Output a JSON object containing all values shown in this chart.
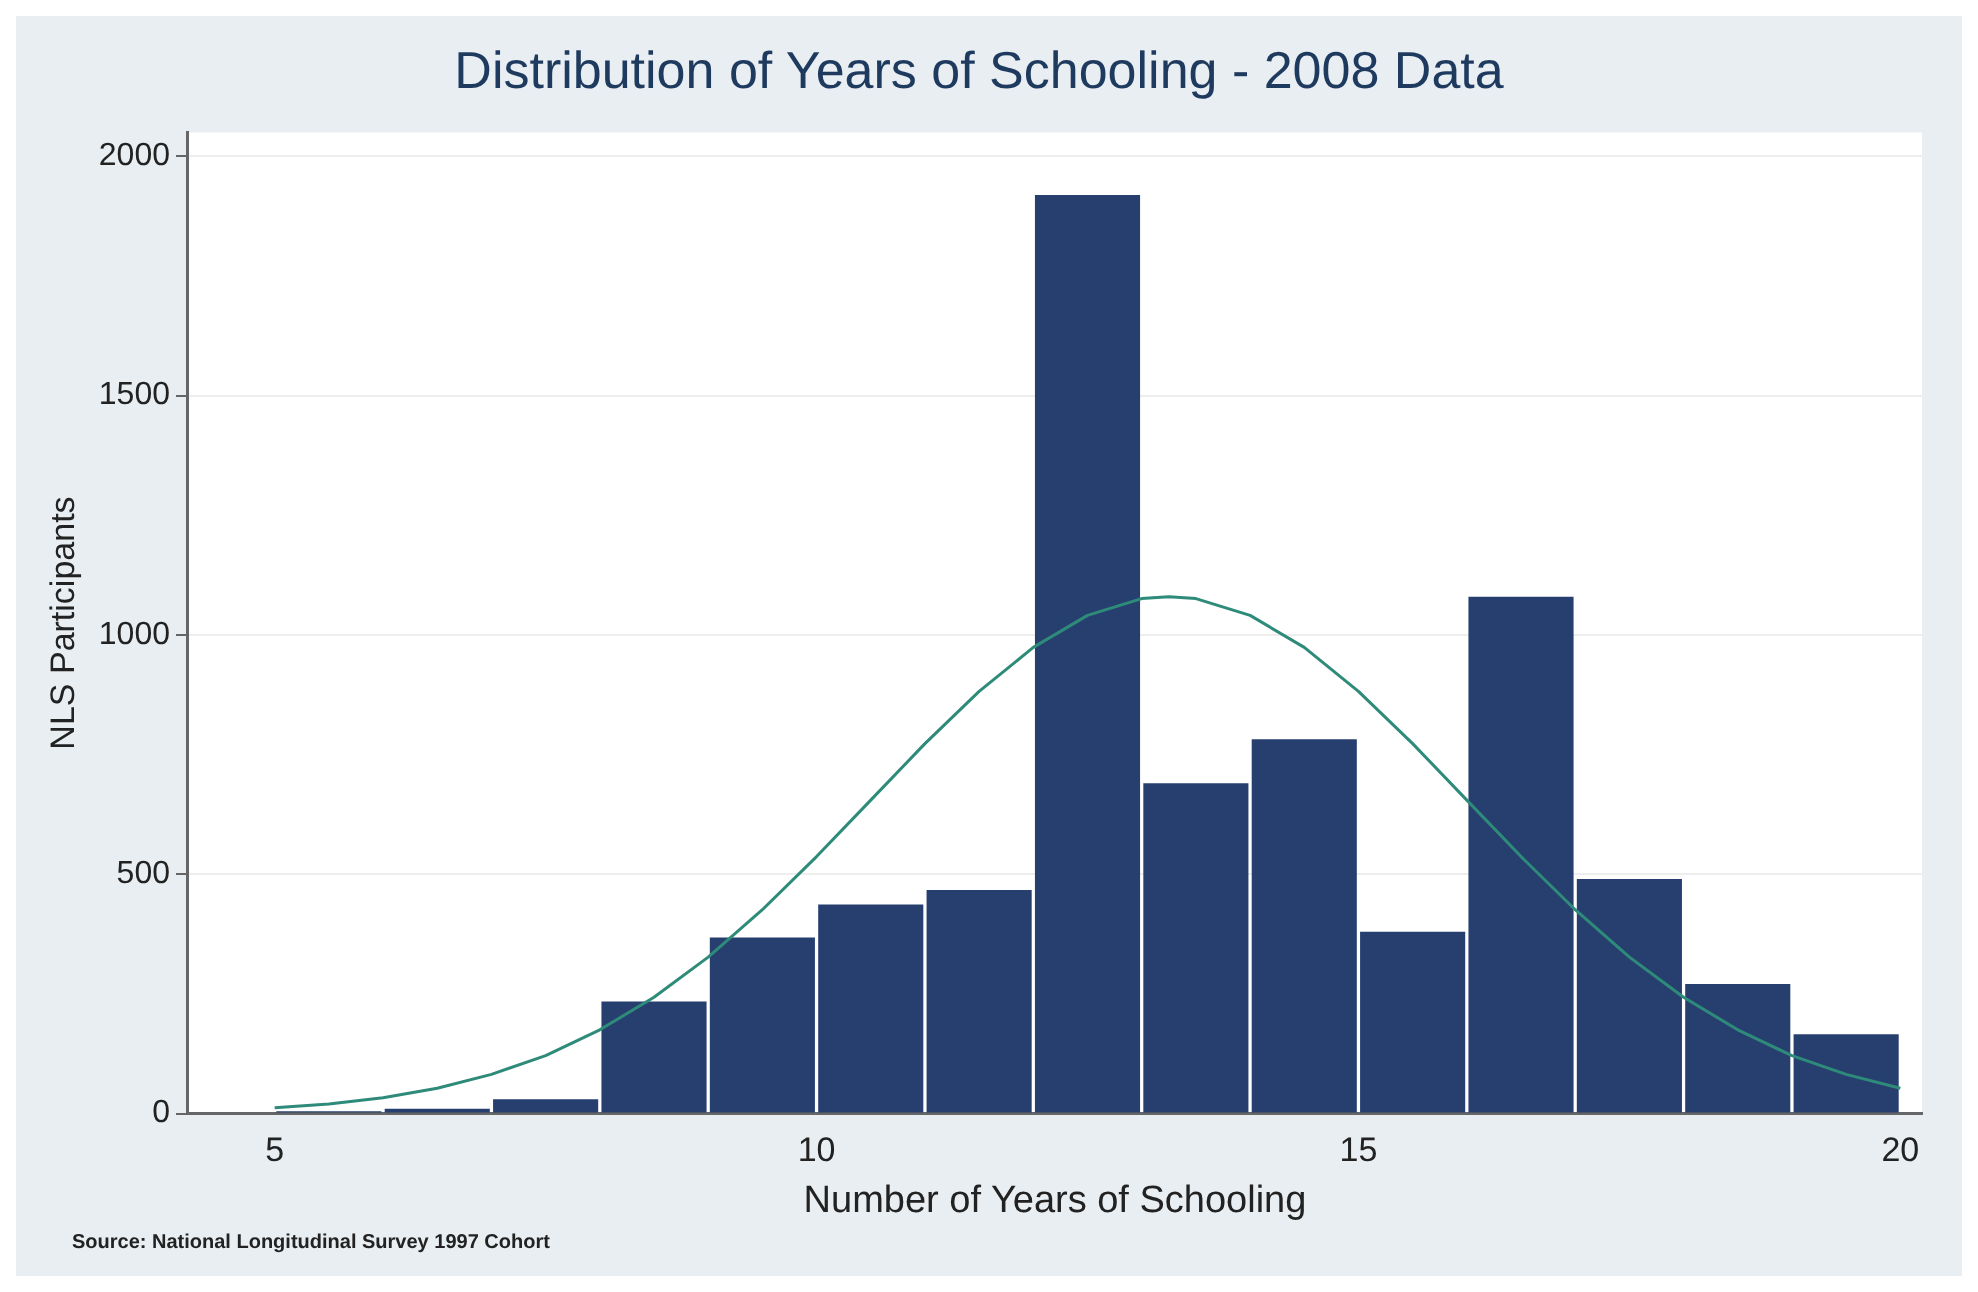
{
  "chart_data": {
    "type": "histogram",
    "title": "Distribution of Years of Schooling - 2008 Data",
    "xlabel": "Number of Years of Schooling",
    "ylabel": "NLS Participants",
    "annotations": [
      "Source: National Longitudinal Survey 1997 Cohort"
    ],
    "bins": [
      5,
      6,
      7,
      8,
      9,
      10,
      11,
      12,
      13,
      14,
      15,
      16,
      17,
      18,
      19,
      20
    ],
    "values": [
      5,
      10,
      30,
      234,
      368,
      437,
      467,
      1919,
      690,
      782,
      380,
      1080,
      490,
      271,
      166
    ],
    "color": "#273f6f",
    "series": [
      {
        "type": "line",
        "color": "#2e8b7a",
        "x": [
          5,
          5.5,
          6,
          6.5,
          7,
          7.5,
          8,
          8.5,
          9,
          9.5,
          10,
          10.5,
          11,
          11.5,
          12,
          12.5,
          13,
          13.25,
          13.5,
          14,
          14.5,
          15,
          15.5,
          16,
          16.5,
          17,
          17.5,
          18,
          18.5,
          19,
          19.5,
          20
        ],
        "values": [
          12,
          20,
          33,
          53,
          82,
          121,
          175,
          243,
          327,
          426,
          537,
          655,
          773,
          882,
          974,
          1041,
          1076,
          1080,
          1076,
          1041,
          974,
          882,
          773,
          655,
          537,
          426,
          327,
          243,
          175,
          121,
          82,
          53
        ]
      }
    ],
    "xlim": [
      4.2,
      20.2
    ],
    "xticks": [
      5,
      10,
      15,
      20
    ],
    "ylim": [
      0,
      2050
    ],
    "yticks": [
      0,
      500,
      1000,
      1500,
      2000
    ],
    "grid": "y",
    "legend": false,
    "marker": "none",
    "line_style": "solid"
  }
}
